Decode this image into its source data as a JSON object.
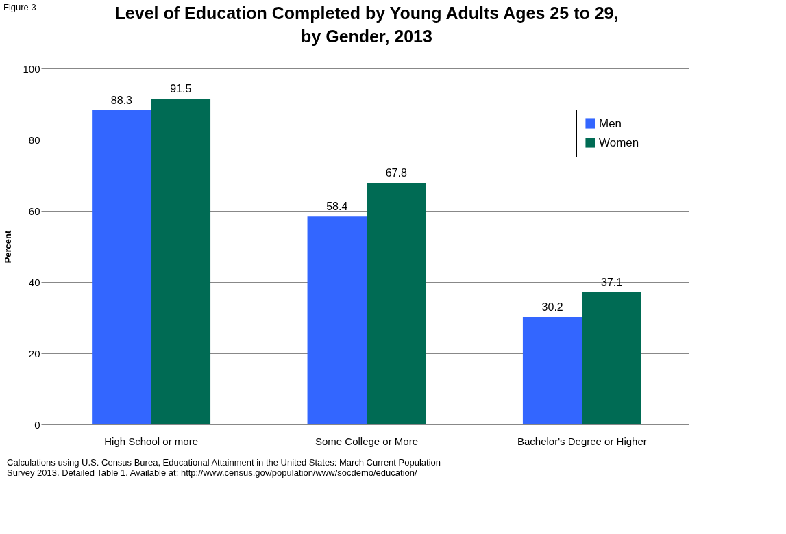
{
  "chart_data": {
    "type": "bar",
    "title": "Level of Education Completed by Young Adults Ages 25 to 29, by Gender, 2013",
    "ylabel": "Percent",
    "categories": [
      "High School or more",
      "Some College or More",
      "Bachelor's Degree or Higher"
    ],
    "series": [
      {
        "name": "Men",
        "color": "#3366ff",
        "values": [
          88.3,
          58.4,
          30.2
        ]
      },
      {
        "name": "Women",
        "color": "#006b54",
        "values": [
          91.5,
          67.8,
          37.1
        ]
      }
    ],
    "ylim": [
      0,
      100
    ],
    "yticks": [
      0,
      20,
      40,
      60,
      80,
      100
    ],
    "grid": "y",
    "legend": "top right",
    "data_labels": true,
    "annotations": [
      "Figure 3",
      "Calculations using U.S. Census Burea, Educational Attainment in the United States:  March Current Population Survey 2013.  Detailed Table 1.  Available at:  http://www.census.gov/population/www/socdemo/education/"
    ]
  }
}
